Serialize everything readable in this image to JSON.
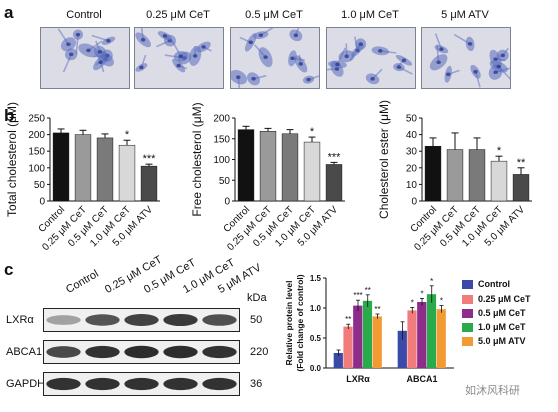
{
  "panels": {
    "a": "a",
    "b": "b",
    "c": "c"
  },
  "micrographs": {
    "labels": [
      "Control",
      "0.25 μM CeT",
      "0.5 μM CeT",
      "1.0 μM CeT",
      "5 μM ATV"
    ],
    "background": "#dcdce6",
    "cell_color": "#5a6dbd",
    "nucleus_color": "#2c3b8f"
  },
  "chart_data": [
    {
      "type": "bar",
      "categories": [
        "Control",
        "0.25 μM CeT",
        "0.5 μM CeT",
        "1.0 μM CeT",
        "5.0 μM ATV"
      ],
      "values": [
        205,
        200,
        190,
        168,
        105
      ],
      "errors": [
        12,
        13,
        12,
        15,
        6
      ],
      "significance": [
        "",
        "",
        "",
        "*",
        "***"
      ],
      "ylabel": "Total cholesterol (μM)",
      "ylim": [
        0,
        250
      ],
      "yticks": [
        0,
        50,
        100,
        150,
        200,
        250
      ],
      "colors": [
        "#111111",
        "#9a9a9a",
        "#7a7a7a",
        "#d8d8d8",
        "#4a4a4a"
      ]
    },
    {
      "type": "bar",
      "categories": [
        "Control",
        "0.25 μM CeT",
        "0.5 μM CeT",
        "1.0 μM CeT",
        "5.0 μM ATV"
      ],
      "values": [
        172,
        168,
        162,
        142,
        88
      ],
      "errors": [
        8,
        7,
        10,
        12,
        5
      ],
      "significance": [
        "",
        "",
        "",
        "*",
        "***"
      ],
      "ylabel": "Free cholesterol (μM)",
      "ylim": [
        0,
        200
      ],
      "yticks": [
        0,
        50,
        100,
        150,
        200
      ],
      "colors": [
        "#111111",
        "#9a9a9a",
        "#7a7a7a",
        "#d8d8d8",
        "#4a4a4a"
      ]
    },
    {
      "type": "bar",
      "categories": [
        "Control",
        "0.25 μM CeT",
        "0.5 μM CeT",
        "1.0 μM CeT",
        "5.0 μM ATV"
      ],
      "values": [
        33,
        31,
        31,
        24,
        16
      ],
      "errors": [
        5,
        10,
        7,
        3,
        4
      ],
      "significance": [
        "",
        "",
        "",
        "*",
        "**"
      ],
      "ylabel": "Cholesterol ester (μM)",
      "ylim": [
        0,
        50
      ],
      "yticks": [
        0,
        10,
        20,
        30,
        40,
        50
      ],
      "colors": [
        "#111111",
        "#9a9a9a",
        "#7a7a7a",
        "#d8d8d8",
        "#4a4a4a"
      ]
    },
    {
      "type": "bar",
      "categories": [
        "LXRα",
        "ABCA1"
      ],
      "series": [
        {
          "name": "Control",
          "values": [
            0.25,
            0.62
          ],
          "errors": [
            0.05,
            0.15
          ],
          "color": "#3b4aa8"
        },
        {
          "name": "0.25 μM CeT",
          "values": [
            0.69,
            0.96
          ],
          "errors": [
            0.04,
            0.05
          ],
          "color": "#f07c7c"
        },
        {
          "name": "0.5 μM CeT",
          "values": [
            1.04,
            1.1
          ],
          "errors": [
            0.09,
            0.06
          ],
          "color": "#8e2c8c"
        },
        {
          "name": "1.0 μM CeT",
          "values": [
            1.12,
            1.23
          ],
          "errors": [
            0.1,
            0.14
          ],
          "color": "#2aaa4a"
        },
        {
          "name": "5.0 μM ATV",
          "values": [
            0.86,
            0.98
          ],
          "errors": [
            0.04,
            0.06
          ],
          "color": "#f29b35"
        }
      ],
      "significance": [
        [
          "",
          "**",
          "***",
          "**",
          "**"
        ],
        [
          "",
          "*",
          "*",
          "*",
          "*"
        ]
      ],
      "ylabel": "Relative protein level\n(Fold change of control)",
      "ylim": [
        0,
        1.5
      ],
      "yticks": [
        0.0,
        0.5,
        1.0,
        1.5
      ],
      "ytick_labels": [
        "0.0",
        "0.5",
        "1.0",
        "1.5"
      ]
    }
  ],
  "blot": {
    "lanes": [
      "Control",
      "0.25 μM CeT",
      "0.5 μM CeT",
      "1.0 μM CeT",
      "5 μM ATV"
    ],
    "kda_header": "kDa",
    "rows": [
      {
        "name": "LXRα",
        "kda": "50",
        "intensity": [
          0.35,
          0.7,
          0.78,
          0.82,
          0.72
        ]
      },
      {
        "name": "ABCA1",
        "kda": "220",
        "intensity": [
          0.75,
          0.85,
          0.88,
          0.88,
          0.85
        ]
      },
      {
        "name": "GAPDH",
        "kda": "36",
        "intensity": [
          0.85,
          0.85,
          0.85,
          0.85,
          0.85
        ]
      }
    ]
  },
  "watermark": "如沐风科研"
}
